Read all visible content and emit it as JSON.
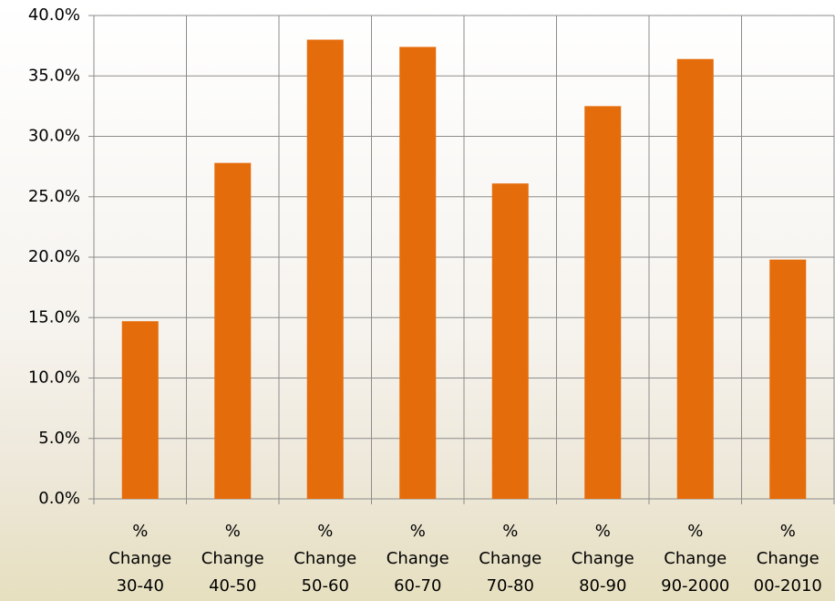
{
  "chart_data": {
    "type": "bar",
    "categories": [
      "% Change 30-40",
      "% Change 40-50",
      "% Change 50-60",
      "% Change 60-70",
      "% Change 70-80",
      "% Change 80-90",
      "% Change 90-2000",
      "% Change 00-2010"
    ],
    "values": [
      14.7,
      27.8,
      38.0,
      37.4,
      26.1,
      32.5,
      36.4,
      19.8
    ],
    "color": "#e46c0a",
    "ylim": [
      0,
      40
    ],
    "yticks": [
      {
        "value": 0,
        "label": "0.0%"
      },
      {
        "value": 5,
        "label": "5.0%"
      },
      {
        "value": 10,
        "label": "10.0%"
      },
      {
        "value": 15,
        "label": "15.0%"
      },
      {
        "value": 20,
        "label": "20.0%"
      },
      {
        "value": 25,
        "label": "25.0%"
      },
      {
        "value": 30,
        "label": "30.0%"
      },
      {
        "value": 35,
        "label": "35.0%"
      },
      {
        "value": 40,
        "label": "40.0%"
      }
    ],
    "grid": true
  }
}
